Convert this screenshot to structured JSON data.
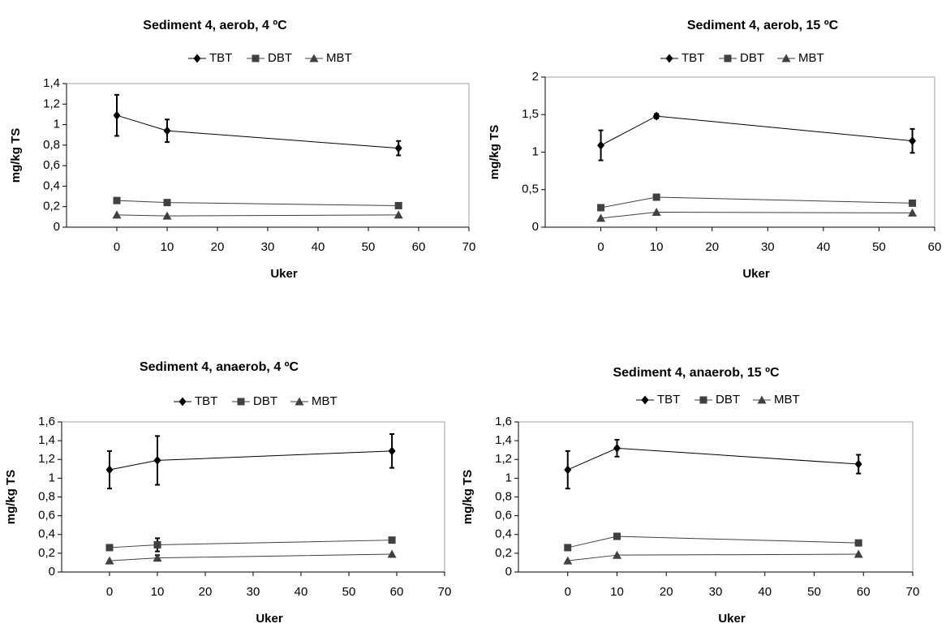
{
  "chart_data": [
    {
      "type": "line",
      "title": "Sediment 4, aerob, 4 ºC",
      "xlabel": "Uker",
      "ylabel": "mg/kg TS",
      "x": [
        0,
        10,
        56
      ],
      "xlim": [
        -10,
        70
      ],
      "xticks": [
        0,
        10,
        20,
        30,
        40,
        50,
        60,
        70
      ],
      "ylim": [
        0,
        1.4
      ],
      "yticks": [
        0,
        {
          "value": 0.2,
          "label": "0,2"
        },
        {
          "value": 0.4,
          "label": "0,4"
        },
        {
          "value": 0.6,
          "label": "0,6"
        },
        {
          "value": 0.8,
          "label": "0,8"
        },
        1,
        {
          "value": 1.2,
          "label": "1,2"
        },
        {
          "value": 1.4,
          "label": "1,4"
        }
      ],
      "series": [
        {
          "name": "TBT",
          "color": "#000000",
          "marker": "diamond",
          "values": [
            1.09,
            0.94,
            0.77
          ],
          "errors": [
            0.2,
            0.11,
            0.07
          ]
        },
        {
          "name": "DBT",
          "color": "#404040",
          "marker": "square",
          "values": [
            0.26,
            0.24,
            0.21
          ],
          "errors": [
            0.02,
            null,
            null
          ]
        },
        {
          "name": "MBT",
          "color": "#404040",
          "marker": "triangle",
          "values": [
            0.12,
            0.11,
            0.12
          ],
          "errors": [
            null,
            null,
            null
          ]
        }
      ]
    },
    {
      "type": "line",
      "title": "Sediment 4, aerob, 15 ºC",
      "xlabel": "Uker",
      "ylabel": "mg/kg TS",
      "x": [
        0,
        10,
        56
      ],
      "xlim": [
        -10,
        60
      ],
      "xticks": [
        0,
        10,
        20,
        30,
        40,
        50,
        60
      ],
      "ylim": [
        0,
        2
      ],
      "yticks": [
        0,
        {
          "value": 0.5,
          "label": "0,5"
        },
        1,
        {
          "value": 1.5,
          "label": "1,5"
        },
        2
      ],
      "series": [
        {
          "name": "TBT",
          "color": "#000000",
          "marker": "diamond",
          "values": [
            1.09,
            1.48,
            1.15
          ],
          "errors": [
            0.2,
            0.03,
            0.16
          ]
        },
        {
          "name": "DBT",
          "color": "#404040",
          "marker": "square",
          "values": [
            0.26,
            0.4,
            0.32
          ],
          "errors": [
            null,
            null,
            null
          ]
        },
        {
          "name": "MBT",
          "color": "#404040",
          "marker": "triangle",
          "values": [
            0.12,
            0.2,
            0.19
          ],
          "errors": [
            null,
            null,
            null
          ]
        }
      ]
    },
    {
      "type": "line",
      "title": "Sediment 4, anaerob, 4 ºC",
      "xlabel": "Uker",
      "ylabel": "mg/kg TS",
      "x": [
        0,
        10,
        59
      ],
      "xlim": [
        -10,
        70
      ],
      "xticks": [
        0,
        10,
        20,
        30,
        40,
        50,
        60,
        70
      ],
      "ylim": [
        0,
        1.6
      ],
      "yticks": [
        0,
        {
          "value": 0.2,
          "label": "0,2"
        },
        {
          "value": 0.4,
          "label": "0,4"
        },
        {
          "value": 0.6,
          "label": "0,6"
        },
        {
          "value": 0.8,
          "label": "0,8"
        },
        1,
        {
          "value": 1.2,
          "label": "1,2"
        },
        {
          "value": 1.4,
          "label": "1,4"
        },
        {
          "value": 1.6,
          "label": "1,6"
        }
      ],
      "series": [
        {
          "name": "TBT",
          "color": "#000000",
          "marker": "diamond",
          "values": [
            1.09,
            1.19,
            1.29
          ],
          "errors": [
            0.2,
            0.26,
            0.18
          ]
        },
        {
          "name": "DBT",
          "color": "#404040",
          "marker": "square",
          "values": [
            0.26,
            0.29,
            0.34
          ],
          "errors": [
            0.02,
            0.07,
            null
          ]
        },
        {
          "name": "MBT",
          "color": "#404040",
          "marker": "triangle",
          "values": [
            0.12,
            0.15,
            0.19
          ],
          "errors": [
            null,
            0.03,
            null
          ]
        }
      ]
    },
    {
      "type": "line",
      "title": "Sediment 4, anaerob, 15 ºC",
      "xlabel": "Uker",
      "ylabel": "mg/kg TS",
      "x": [
        0,
        10,
        59
      ],
      "xlim": [
        -10,
        70
      ],
      "xticks": [
        0,
        10,
        20,
        30,
        40,
        50,
        60,
        70
      ],
      "ylim": [
        0,
        1.6
      ],
      "yticks": [
        0,
        {
          "value": 0.2,
          "label": "0,2"
        },
        {
          "value": 0.4,
          "label": "0,4"
        },
        {
          "value": 0.6,
          "label": "0,6"
        },
        {
          "value": 0.8,
          "label": "0,8"
        },
        1,
        {
          "value": 1.2,
          "label": "1,2"
        },
        {
          "value": 1.4,
          "label": "1,4"
        },
        {
          "value": 1.6,
          "label": "1,6"
        }
      ],
      "series": [
        {
          "name": "TBT",
          "color": "#000000",
          "marker": "diamond",
          "values": [
            1.09,
            1.32,
            1.15
          ],
          "errors": [
            0.2,
            0.09,
            0.1
          ]
        },
        {
          "name": "DBT",
          "color": "#404040",
          "marker": "square",
          "values": [
            0.26,
            0.38,
            0.31
          ],
          "errors": [
            null,
            0.03,
            null
          ]
        },
        {
          "name": "MBT",
          "color": "#404040",
          "marker": "triangle",
          "values": [
            0.12,
            0.18,
            0.19
          ],
          "errors": [
            null,
            null,
            null
          ]
        }
      ]
    }
  ]
}
